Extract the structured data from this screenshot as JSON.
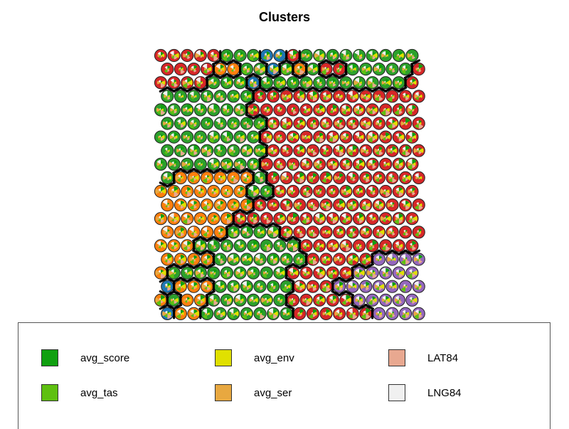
{
  "chart_data": {
    "type": "som-codes",
    "title": "Clusters",
    "grid": {
      "cols": 20,
      "rows": 20,
      "topology": "hexagonal"
    },
    "cluster_colors": [
      "#1f77b4",
      "#ff7f0e",
      "#2ca02c",
      "#d62728",
      "#9467bd"
    ],
    "variables": [
      {
        "name": "avg_score",
        "color": "#10a010"
      },
      {
        "name": "avg_env",
        "color": "#e0e000"
      },
      {
        "name": "LAT84",
        "color": "#e8a890"
      },
      {
        "name": "avg_tas",
        "color": "#5ec010"
      },
      {
        "name": "avg_ser",
        "color": "#e8a840"
      },
      {
        "name": "LNG84",
        "color": "#f0f0f0"
      }
    ],
    "clusters_rows": [
      "33333222003222222222",
      "33331122021233222223",
      "33332220222222222223",
      "22222223333333333333",
      "22222223333333333333",
      "22222222333333333333",
      "22222222333333333333",
      "22222222333333333333",
      "22222222333333333333",
      "21111112333333333333",
      "11111112233333333333",
      "11111113333333333333",
      "11111133333333333333",
      "11111222233333333333",
      "11122222222333333333",
      "11112222222333334444",
      "12222222223333344444",
      "01112222223334444444",
      "12112222223333344444",
      "01122222223333334444"
    ]
  },
  "legend": {
    "items": [
      {
        "label": "avg_score",
        "color": "#10a010"
      },
      {
        "label": "avg_env",
        "color": "#e0e000"
      },
      {
        "label": "LAT84",
        "color": "#e8a890"
      },
      {
        "label": "avg_tas",
        "color": "#5ec010"
      },
      {
        "label": "avg_ser",
        "color": "#e8a840"
      },
      {
        "label": "LNG84",
        "color": "#f0f0f0"
      }
    ]
  }
}
